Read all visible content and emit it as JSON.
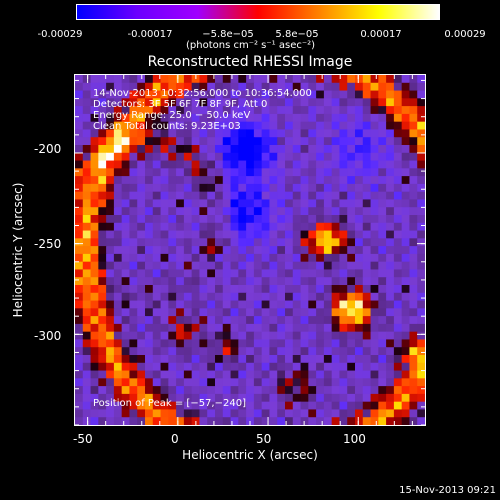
{
  "colorbar": {
    "tick_labels": [
      "-0.00029",
      "-0.00017",
      "−5.8e−05",
      "5.8e−05",
      "0.00017",
      "0.00029"
    ],
    "units": "(photons cm⁻² s⁻¹ asec⁻²)",
    "colors": [
      "#0000ff",
      "#6b00ff",
      "#a000ff",
      "#ff0000",
      "#ff8000",
      "#ffff00",
      "#ffffff"
    ]
  },
  "chart_data": {
    "type": "heatmap",
    "title": "Reconstructed RHESSI Image",
    "xlabel": "Heliocentric X (arcsec)",
    "ylabel": "Heliocentric Y (arcsec)",
    "xlim": [
      -57,
      137
    ],
    "ylim": [
      -350,
      -157
    ],
    "x_ticks": [
      -50,
      0,
      50,
      100
    ],
    "y_ticks": [
      -200,
      -250,
      -300
    ],
    "value_range": [
      -0.00029,
      0.00029
    ],
    "peak_position": [
      -57,
      -240
    ]
  },
  "annotations": {
    "time_range": "14‑Nov‑2013 10:32:56.000 to 10:36:54.000",
    "detectors": "Detectors: 3F 5F 6F 7F 8F 9F, Att 0",
    "energy_range": "Energy Range: 25.0 − 50.0 keV",
    "clean": "Clean    Total counts: 9.23E+03",
    "peak": "Position of Peak = [−57,−240]"
  },
  "footer": {
    "timestamp": "15‑Nov‑2013 09:21"
  }
}
